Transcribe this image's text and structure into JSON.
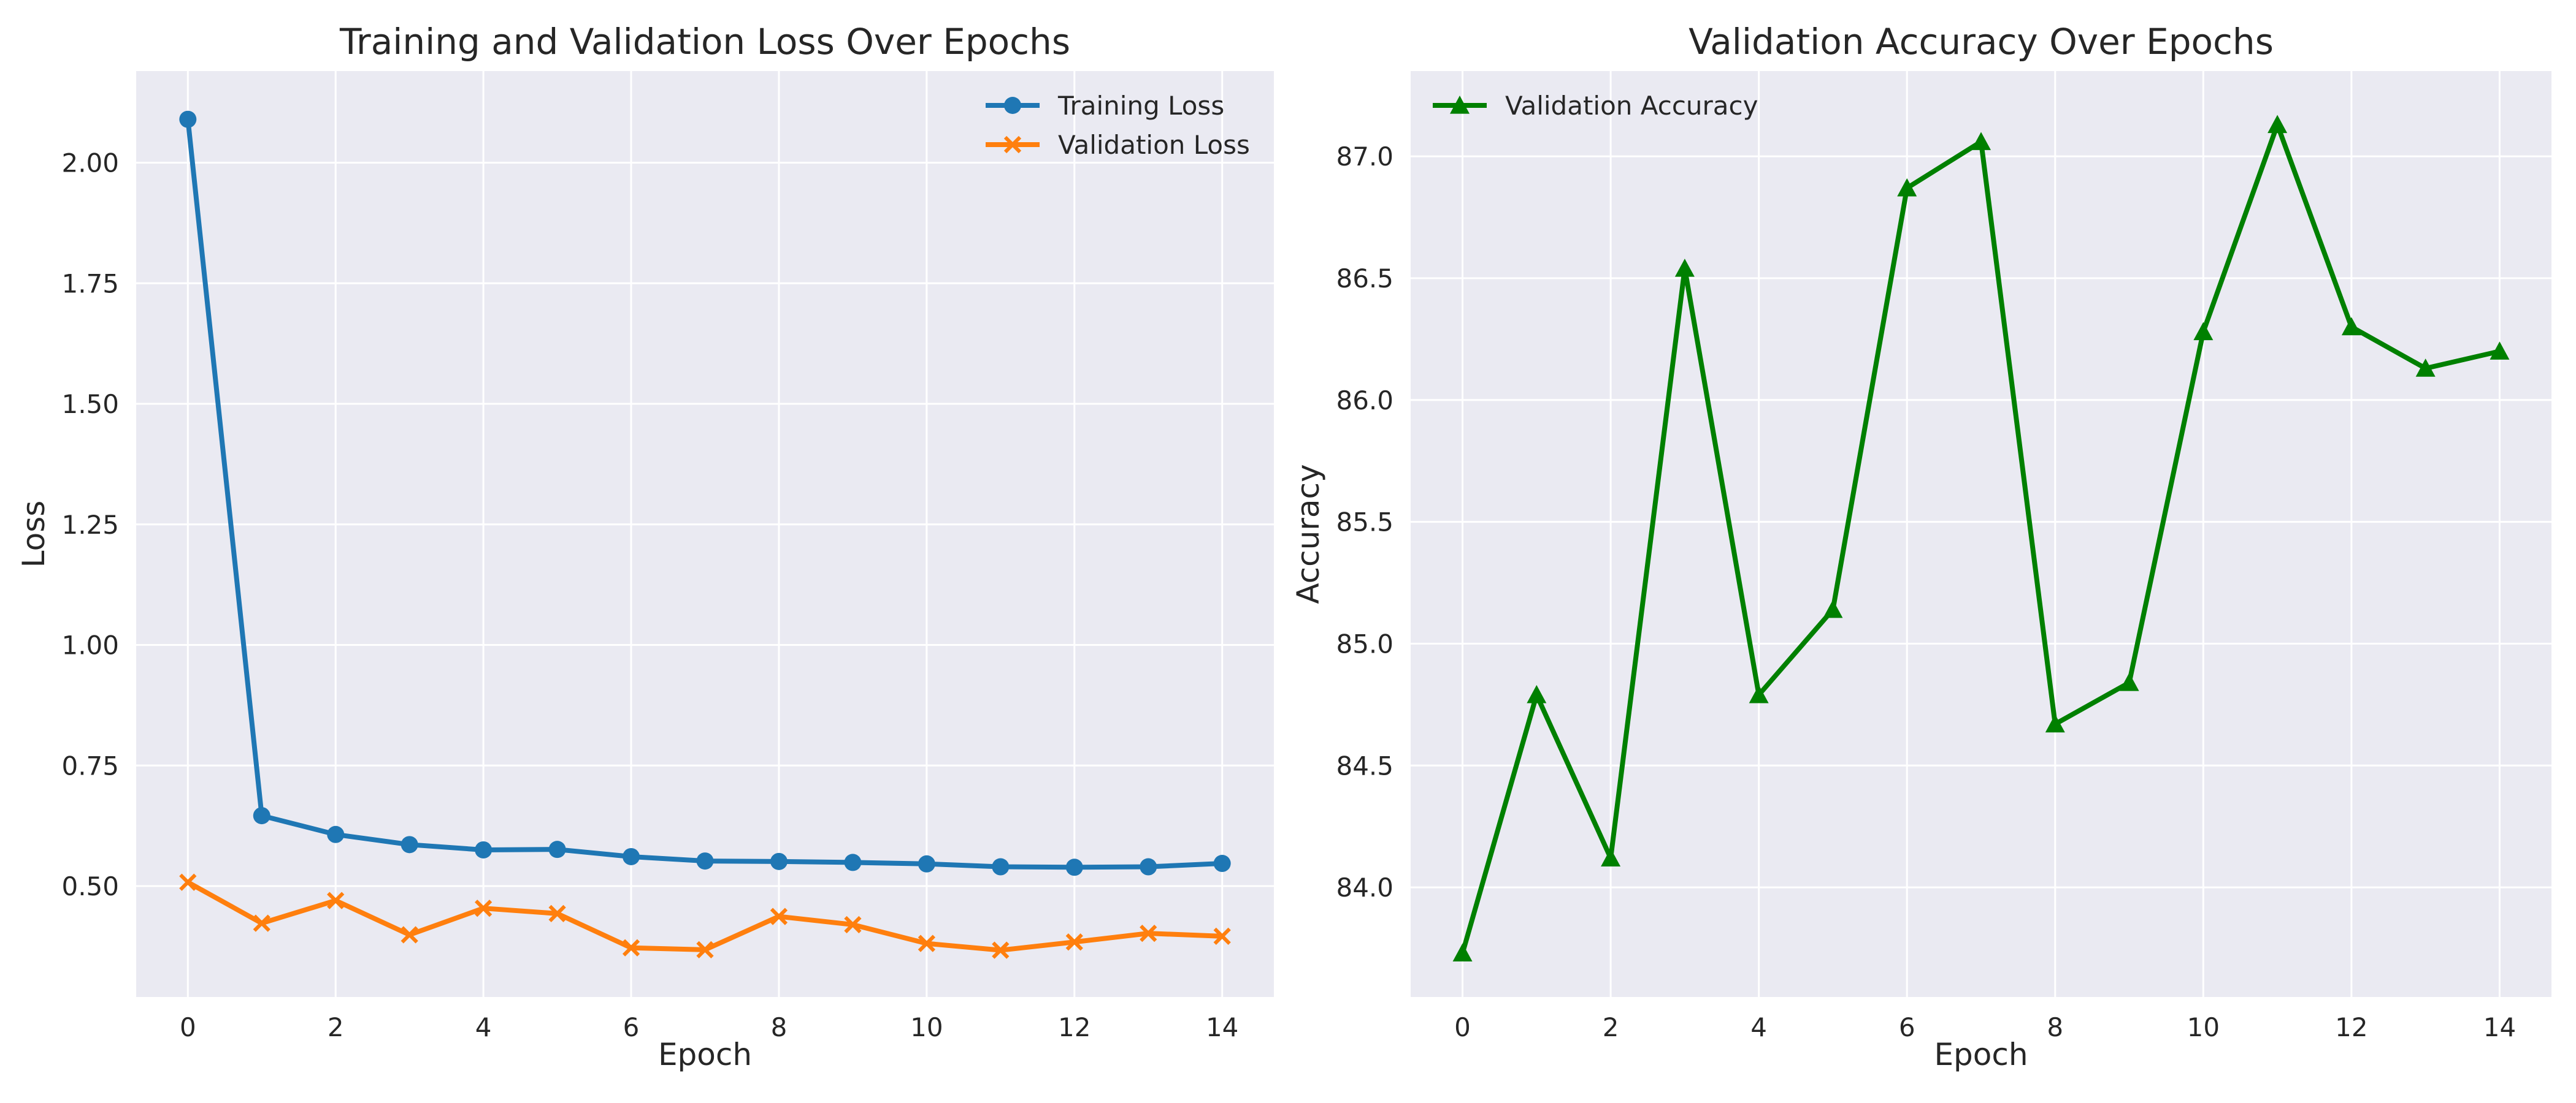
{
  "chart_data": [
    {
      "type": "line",
      "title": "Training and Validation Loss Over Epochs",
      "xlabel": "Epoch",
      "ylabel": "Loss",
      "xlim": [
        -0.7,
        14.7
      ],
      "ylim": [
        0.27,
        2.19
      ],
      "xticks": [
        0,
        2,
        4,
        6,
        8,
        10,
        12,
        14
      ],
      "xtick_labels": [
        "0",
        "2",
        "4",
        "6",
        "8",
        "10",
        "12",
        "14"
      ],
      "yticks": [
        0.5,
        0.75,
        1.0,
        1.25,
        1.5,
        1.75,
        2.0
      ],
      "ytick_labels": [
        "0.50",
        "0.75",
        "1.00",
        "1.25",
        "1.50",
        "1.75",
        "2.00"
      ],
      "grid": true,
      "legend_position": "upper right",
      "x": [
        0,
        1,
        2,
        3,
        4,
        5,
        6,
        7,
        8,
        9,
        10,
        11,
        12,
        13,
        14
      ],
      "series": [
        {
          "name": "Training Loss",
          "color": "#1f77b4",
          "marker": "circle",
          "values": [
            2.09,
            0.646,
            0.607,
            0.586,
            0.575,
            0.576,
            0.561,
            0.552,
            0.551,
            0.549,
            0.546,
            0.54,
            0.539,
            0.54,
            0.547
          ]
        },
        {
          "name": "Validation Loss",
          "color": "#ff7f0e",
          "marker": "x",
          "values": [
            0.508,
            0.423,
            0.47,
            0.399,
            0.454,
            0.443,
            0.372,
            0.368,
            0.437,
            0.42,
            0.381,
            0.367,
            0.384,
            0.402,
            0.396
          ]
        }
      ]
    },
    {
      "type": "line",
      "title": "Validation Accuracy Over Epochs",
      "xlabel": "Epoch",
      "ylabel": "Accuracy",
      "xlim": [
        -0.7,
        14.7
      ],
      "ylim": [
        83.55,
        87.35
      ],
      "xticks": [
        0,
        2,
        4,
        6,
        8,
        10,
        12,
        14
      ],
      "xtick_labels": [
        "0",
        "2",
        "4",
        "6",
        "8",
        "10",
        "12",
        "14"
      ],
      "yticks": [
        84.0,
        84.5,
        85.0,
        85.5,
        86.0,
        86.5,
        87.0
      ],
      "ytick_labels": [
        "84.0",
        "84.5",
        "85.0",
        "85.5",
        "86.0",
        "86.5",
        "87.0"
      ],
      "grid": true,
      "legend_position": "upper left",
      "x": [
        0,
        1,
        2,
        3,
        4,
        5,
        6,
        7,
        8,
        9,
        10,
        11,
        12,
        13,
        14
      ],
      "series": [
        {
          "name": "Validation Accuracy",
          "color": "#008000",
          "marker": "triangle-up",
          "values": [
            83.73,
            84.79,
            84.12,
            86.54,
            84.79,
            85.14,
            86.87,
            87.06,
            84.67,
            84.84,
            86.28,
            87.13,
            86.3,
            86.13,
            86.2
          ]
        }
      ]
    }
  ]
}
